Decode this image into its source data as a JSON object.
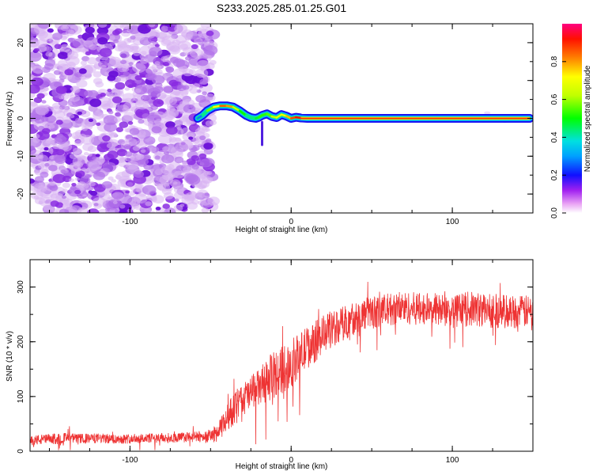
{
  "title": "S233.2025.285.01.25.G01",
  "chart_data": [
    {
      "type": "heatmap",
      "xlabel": "Height of straight line (km)",
      "ylabel": "Frequency (Hz)",
      "xlim": [
        -162,
        150
      ],
      "ylim": [
        -25,
        25
      ],
      "xticks": [
        -100,
        0,
        100
      ],
      "xtick_labels": [
        "-100",
        "0",
        "100"
      ],
      "yticks": [
        -20,
        -10,
        0,
        10,
        20
      ],
      "ytick_labels": [
        "-20",
        "-10",
        "0",
        "10",
        "20"
      ],
      "noise_region_x": [
        -162,
        -52
      ],
      "signal_track": {
        "x": [
          -58,
          -55,
          -52,
          -48,
          -44,
          -40,
          -36,
          -32,
          -28,
          -25,
          -22,
          -20,
          -18,
          -15,
          -12,
          -9,
          -6,
          -3,
          0,
          3,
          6,
          10,
          30,
          60,
          100,
          148
        ],
        "freq": [
          0,
          0.8,
          2.0,
          3.0,
          3.3,
          3.3,
          3.0,
          2.0,
          0.8,
          0.2,
          0.0,
          0.3,
          0.8,
          1.2,
          0.5,
          0.2,
          1.0,
          0.6,
          0.0,
          0.3,
          0.1,
          0.0,
          0.0,
          0.0,
          0.0,
          0.0
        ],
        "amplitude": [
          0.2,
          0.35,
          0.5,
          0.65,
          0.8,
          0.9,
          0.7,
          0.55,
          0.45,
          0.4,
          0.45,
          0.5,
          0.55,
          0.5,
          0.6,
          0.65,
          0.7,
          0.7,
          0.85,
          0.9,
          0.95,
          0.97,
          0.97,
          0.97,
          0.97,
          0.97
        ]
      },
      "colorbar": {
        "label": "Normalized spectral amplitude",
        "range": [
          0,
          1
        ],
        "ticks": [
          0.0,
          0.2,
          0.4,
          0.6,
          0.8
        ],
        "tick_labels": [
          "0.0",
          "0.2",
          "0.4",
          "0.6",
          "0.8"
        ]
      }
    },
    {
      "type": "line",
      "xlabel": "Height of straight line (km)",
      "ylabel": "SNR (10 * v/v)",
      "xlim": [
        -162,
        150
      ],
      "ylim": [
        0,
        350
      ],
      "xticks": [
        -100,
        0,
        100
      ],
      "xtick_labels": [
        "-100",
        "0",
        "100"
      ],
      "yticks": [
        0,
        100,
        200,
        300
      ],
      "ytick_labels": [
        "0",
        "100",
        "200",
        "300"
      ],
      "color": "#ee3333",
      "series": [
        {
          "name": "SNR",
          "x": [
            -162,
            -150,
            -140,
            -130,
            -120,
            -110,
            -100,
            -90,
            -80,
            -70,
            -60,
            -50,
            -45,
            -40,
            -35,
            -30,
            -25,
            -20,
            -15,
            -10,
            -5,
            0,
            5,
            10,
            15,
            20,
            30,
            40,
            50,
            60,
            70,
            80,
            90,
            100,
            110,
            120,
            130,
            140,
            150
          ],
          "mean": [
            20,
            22,
            24,
            23,
            24,
            22,
            23,
            24,
            24,
            25,
            26,
            28,
            35,
            60,
            80,
            95,
            105,
            115,
            130,
            140,
            150,
            160,
            175,
            190,
            200,
            215,
            230,
            245,
            255,
            258,
            262,
            260,
            258,
            255,
            260,
            258,
            256,
            255,
            255
          ],
          "spread": [
            9,
            10,
            10,
            9,
            9,
            9,
            9,
            9,
            9,
            9,
            10,
            12,
            18,
            25,
            30,
            32,
            32,
            35,
            40,
            45,
            45,
            45,
            40,
            40,
            38,
            35,
            33,
            30,
            30,
            30,
            30,
            30,
            30,
            30,
            32,
            32,
            32,
            30,
            30
          ]
        }
      ]
    }
  ]
}
